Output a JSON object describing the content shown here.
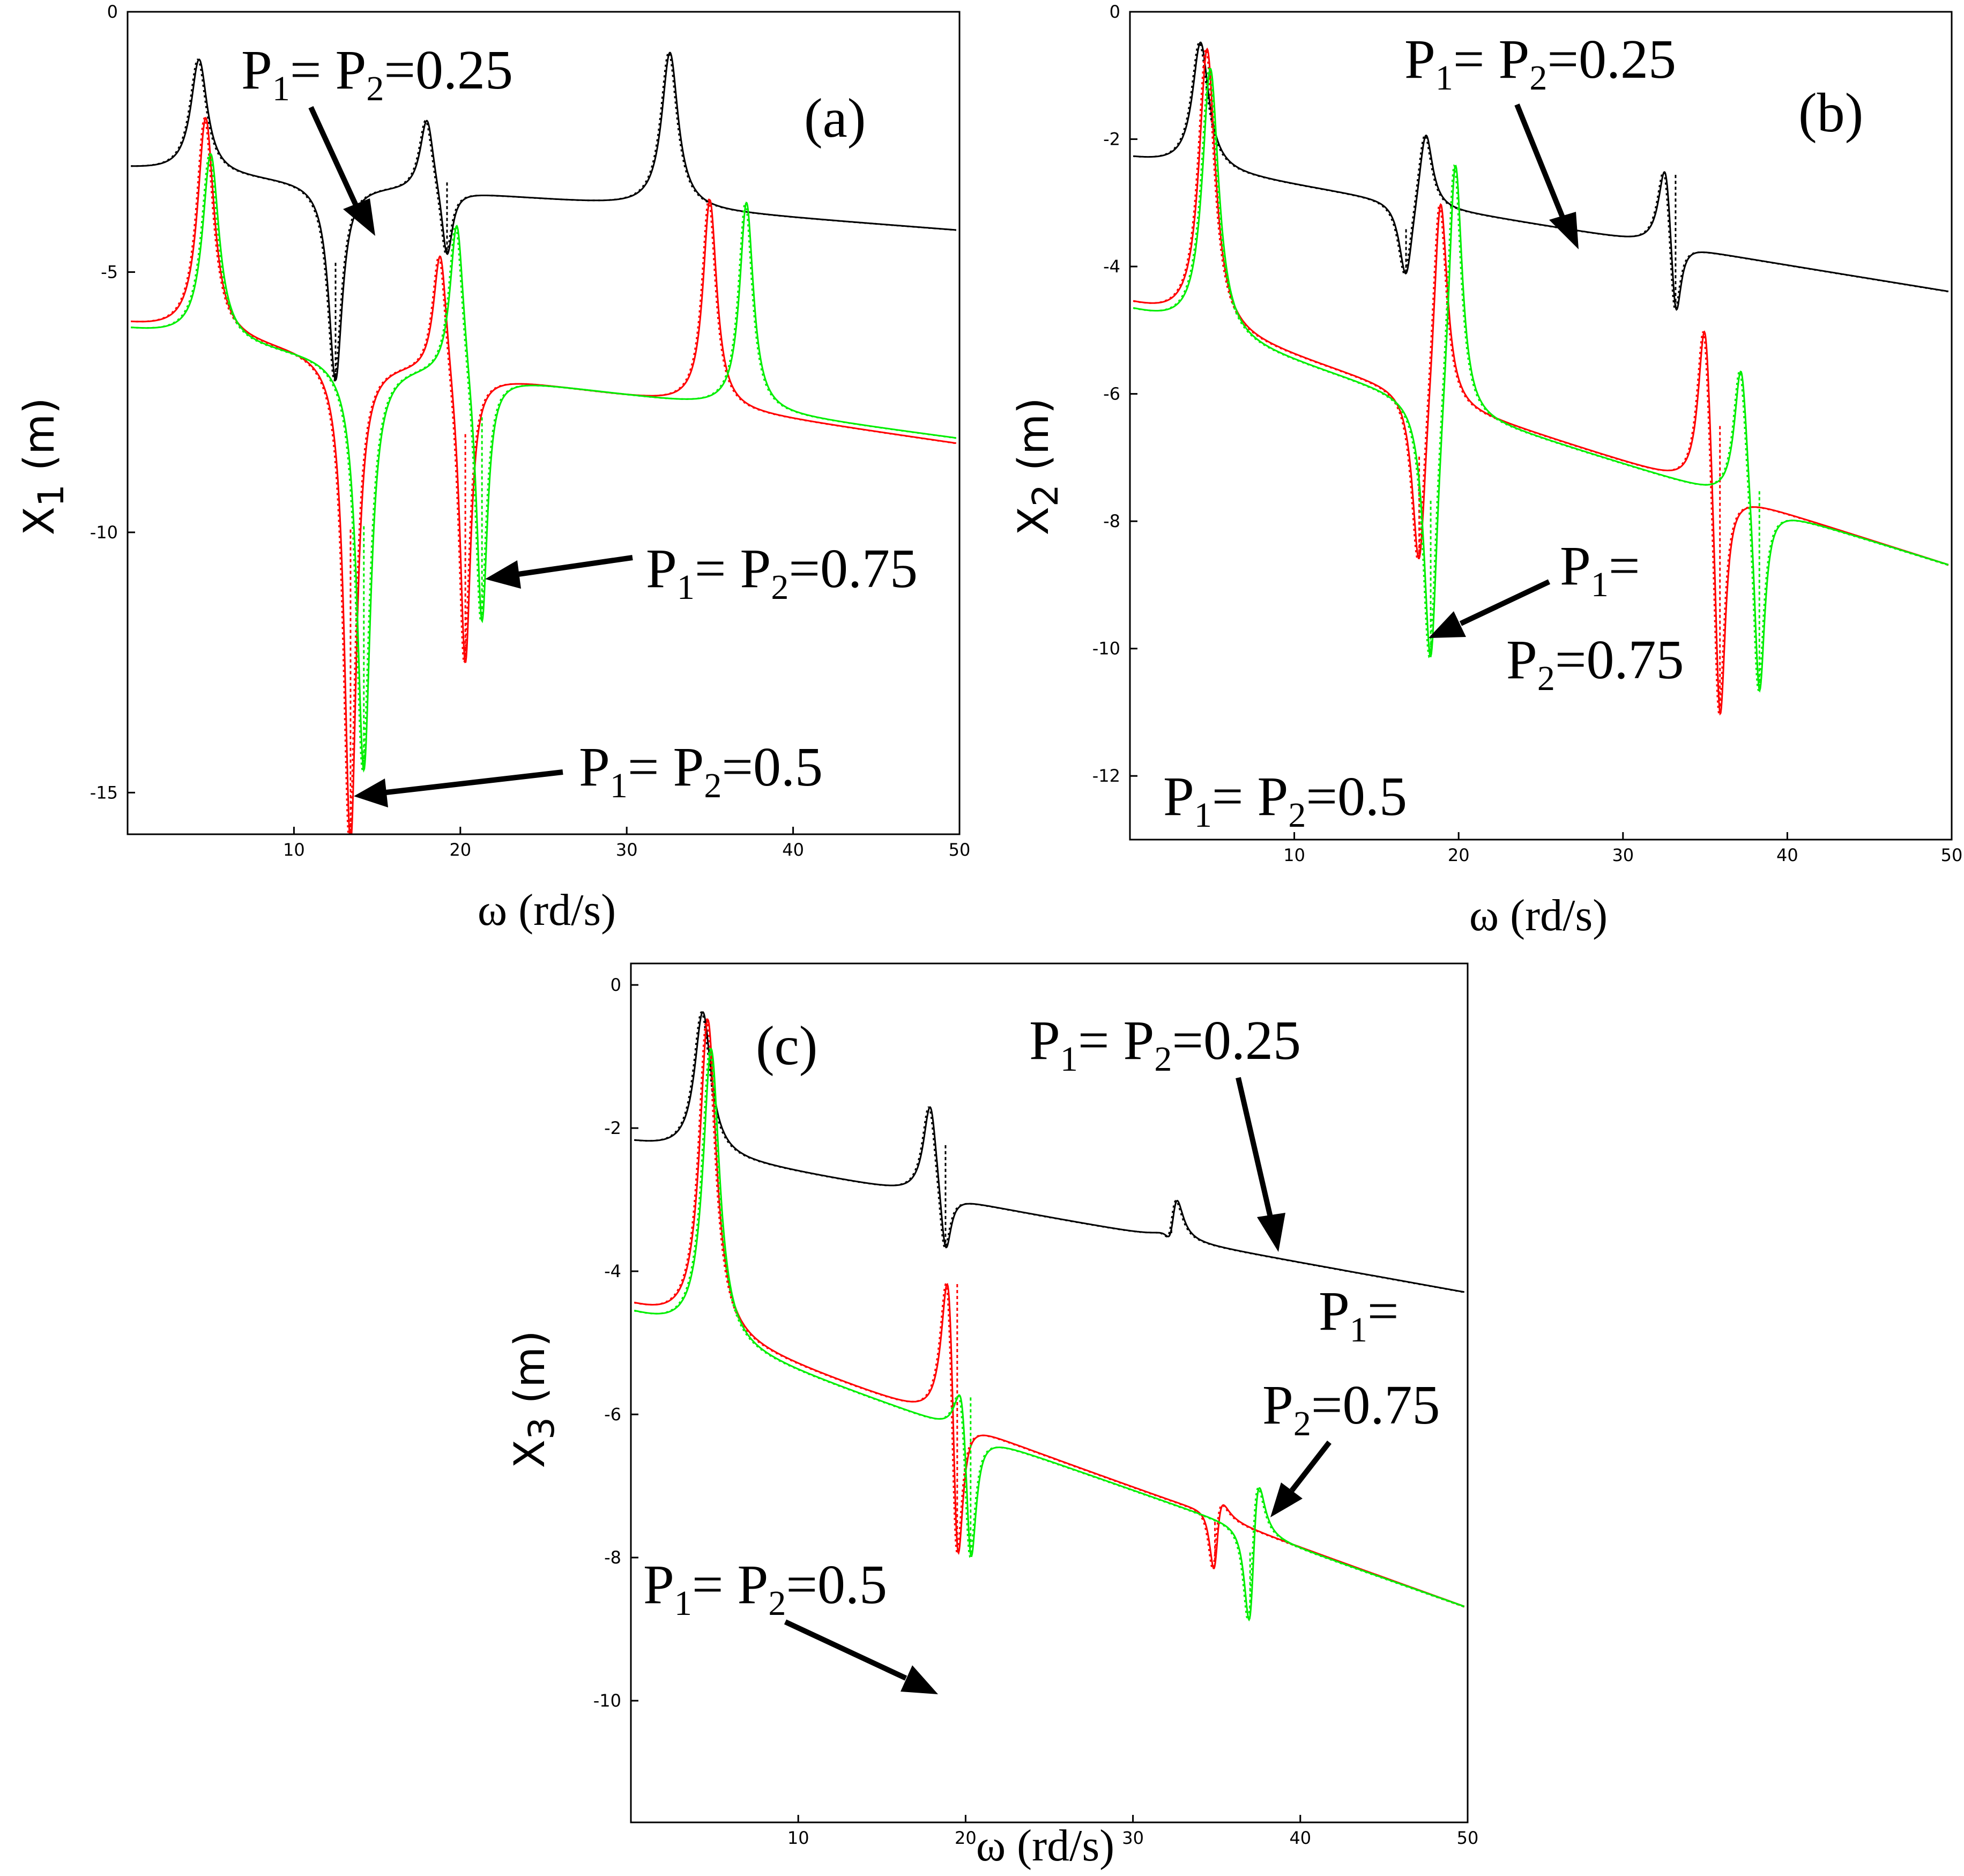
{
  "colors": {
    "p025": "#000000",
    "p05": "#ff0000",
    "p075": "#00ee00"
  },
  "chart_data": [
    {
      "type": "line",
      "panel": "(a)",
      "xlabel": "ω (rd/s)",
      "ylabel": {
        "main": "X",
        "sub": "1",
        "unit": " (m)"
      },
      "xlim": [
        0,
        50
      ],
      "ylim": [
        -15.8,
        0
      ],
      "xticks": [
        10,
        20,
        30,
        40,
        50
      ],
      "yticks": [
        0,
        -5,
        -10,
        -15
      ],
      "series": [
        {
          "name": "P1= P2=0.25",
          "color_key": "p025",
          "base": -3,
          "trend": -1.2,
          "peaks": [
            [
              4.3,
              2.2,
              0.6
            ],
            [
              18.0,
              1.5,
              0.5
            ],
            [
              32.6,
              3.0,
              0.6
            ]
          ],
          "notches": [
            [
              12.5,
              3.8,
              0.5
            ],
            [
              19.2,
              1.4,
              0.4
            ]
          ]
        },
        {
          "name": "P1= P2=0.5",
          "color_key": "p05",
          "base": -6,
          "trend": -2.3,
          "peaks": [
            [
              4.7,
              4.2,
              0.6
            ],
            [
              18.8,
              2.6,
              0.5
            ],
            [
              35.0,
              4.0,
              0.5
            ]
          ],
          "notches": [
            [
              13.4,
              9.4,
              0.45
            ],
            [
              20.3,
              5.8,
              0.4
            ]
          ]
        },
        {
          "name": "P1= P2=0.75",
          "color_key": "p075",
          "base": -6.1,
          "trend": -2.1,
          "peaks": [
            [
              5.0,
              3.6,
              0.6
            ],
            [
              19.8,
              3.2,
              0.5
            ],
            [
              37.2,
              4.0,
              0.5
            ]
          ],
          "notches": [
            [
              14.2,
              7.9,
              0.5
            ],
            [
              21.3,
              5.0,
              0.4
            ]
          ]
        }
      ],
      "annotations": [
        {
          "text_main": "P",
          "sub1": "1",
          "mid": "= P",
          "sub2": "2",
          "tail": "=0.25"
        },
        {
          "text_main": "P",
          "sub1": "1",
          "mid": "= P",
          "sub2": "2",
          "tail": "=0.75"
        },
        {
          "text_main": "P",
          "sub1": "1",
          "mid": "= P",
          "sub2": "2",
          "tail": "=0.5"
        }
      ]
    },
    {
      "type": "line",
      "panel": "(b)",
      "xlabel": "ω (rd/s)",
      "ylabel": {
        "main": "X",
        "sub": "2",
        "unit": " (m)"
      },
      "xlim": [
        0,
        50
      ],
      "ylim": [
        -13,
        0
      ],
      "xticks": [
        10,
        20,
        30,
        40,
        50
      ],
      "yticks": [
        0,
        -2,
        -4,
        -6,
        -8,
        -10,
        -12
      ],
      "series": [
        {
          "name": "P1= P2=0.25",
          "color_key": "p025",
          "base": -2.3,
          "trend": -2.1,
          "peaks": [
            [
              4.3,
              2.0,
              0.6
            ],
            [
              18.0,
              1.3,
              0.5
            ],
            [
              32.6,
              1.6,
              0.5
            ]
          ],
          "notches": [
            [
              16.8,
              1.3,
              0.5
            ],
            [
              33.2,
              1.6,
              0.4
            ]
          ]
        },
        {
          "name": "P1= P2=0.5",
          "color_key": "p05",
          "base": -4.6,
          "trend": -4.1,
          "peaks": [
            [
              4.7,
              4.4,
              0.6
            ],
            [
              18.9,
              3.5,
              0.5
            ],
            [
              35.0,
              3.1,
              0.5
            ]
          ],
          "notches": [
            [
              17.6,
              3.0,
              0.5
            ],
            [
              35.9,
              4.2,
              0.4
            ]
          ]
        },
        {
          "name": "P1= P2=0.75",
          "color_key": "p075",
          "base": -4.7,
          "trend": -4.0,
          "peaks": [
            [
              4.9,
              4.2,
              0.6
            ],
            [
              19.8,
              4.3,
              0.5
            ],
            [
              37.2,
              2.4,
              0.5
            ]
          ],
          "notches": [
            [
              18.3,
              4.4,
              0.5
            ],
            [
              38.3,
              3.3,
              0.4
            ]
          ]
        }
      ],
      "annotations": [
        {
          "text_main": "P",
          "sub1": "1",
          "mid": "= P",
          "sub2": "2",
          "tail": "=0.25"
        },
        {
          "text_main": "P",
          "sub1": "1",
          "mid": "=",
          "sub2": "",
          "tail": ""
        },
        {
          "text_main": "P",
          "sub1": "2",
          "mid": "=0.75",
          "sub2": "",
          "tail": ""
        },
        {
          "text_main": "P",
          "sub1": "1",
          "mid": "= P",
          "sub2": "2",
          "tail": "=0.5"
        }
      ]
    },
    {
      "type": "line",
      "panel": "(c)",
      "xlabel": "ω (rd/s)",
      "ylabel": {
        "main": "X",
        "sub": "3",
        "unit": " (m)"
      },
      "xlim": [
        0,
        50
      ],
      "ylim": [
        -11.7,
        0.3
      ],
      "xticks": [
        10,
        20,
        30,
        40,
        50
      ],
      "yticks": [
        0,
        -2,
        -4,
        -6,
        -8,
        -10
      ],
      "series": [
        {
          "name": "P1= P2=0.25",
          "color_key": "p025",
          "base": -2.2,
          "trend": -2.1,
          "peaks": [
            [
              4.3,
              2.0,
              0.6
            ],
            [
              17.9,
              1.4,
              0.5
            ],
            [
              32.5,
              1.1,
              0.5
            ]
          ],
          "notches": [
            [
              18.8,
              1.0,
              0.4
            ],
            [
              32.3,
              0.8,
              0.4
            ]
          ]
        },
        {
          "name": "P1= P2=0.5",
          "color_key": "p05",
          "base": -4.5,
          "trend": -4.2,
          "peaks": [
            [
              4.6,
              4.4,
              0.6
            ],
            [
              19.0,
              3.0,
              0.5
            ],
            [
              35.0,
              2.0,
              0.5
            ]
          ],
          "notches": [
            [
              19.5,
              3.2,
              0.4
            ],
            [
              34.9,
              2.6,
              0.4
            ]
          ]
        },
        {
          "name": "P1= P2=0.75",
          "color_key": "p075",
          "base": -4.6,
          "trend": -4.1,
          "peaks": [
            [
              4.8,
              4.1,
              0.6
            ],
            [
              19.8,
              1.2,
              0.5
            ],
            [
              37.4,
              1.5,
              0.5
            ]
          ],
          "notches": [
            [
              20.3,
              2.3,
              0.4
            ],
            [
              37.0,
              2.1,
              0.4
            ]
          ]
        }
      ],
      "annotations": [
        {
          "text_main": "P",
          "sub1": "1",
          "mid": "= P",
          "sub2": "2",
          "tail": "=0.25"
        },
        {
          "text_main": "P",
          "sub1": "1",
          "mid": "=",
          "sub2": "",
          "tail": ""
        },
        {
          "text_main": "P",
          "sub1": "2",
          "mid": "=0.75",
          "sub2": "",
          "tail": ""
        },
        {
          "text_main": "P",
          "sub1": "1",
          "mid": "= P",
          "sub2": "2",
          "tail": "=0.5"
        }
      ]
    }
  ]
}
